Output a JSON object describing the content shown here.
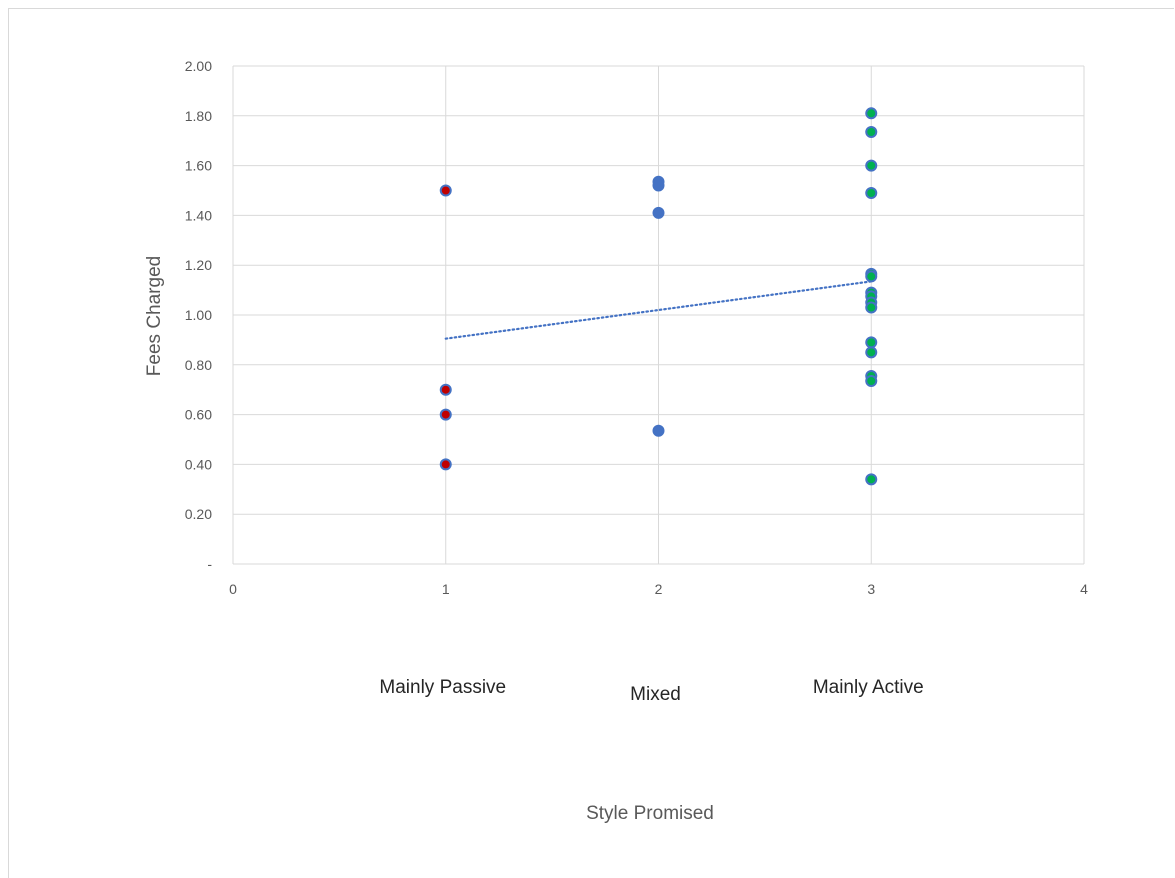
{
  "chart_data": {
    "type": "scatter",
    "title": "",
    "xlabel": "Style Promised",
    "ylabel": "Fees Charged",
    "xlim": [
      0,
      4
    ],
    "ylim": [
      0,
      2
    ],
    "x_ticks": [
      {
        "value": 0,
        "label": "0"
      },
      {
        "value": 1,
        "label": "1"
      },
      {
        "value": 2,
        "label": "2"
      },
      {
        "value": 3,
        "label": "3"
      },
      {
        "value": 4,
        "label": "4"
      }
    ],
    "y_ticks": [
      {
        "value": 0,
        "label": "-"
      },
      {
        "value": 0.2,
        "label": "0.20"
      },
      {
        "value": 0.4,
        "label": "0.40"
      },
      {
        "value": 0.6,
        "label": "0.60"
      },
      {
        "value": 0.8,
        "label": "0.80"
      },
      {
        "value": 1.0,
        "label": "1.00"
      },
      {
        "value": 1.2,
        "label": "1.20"
      },
      {
        "value": 1.4,
        "label": "1.40"
      },
      {
        "value": 1.6,
        "label": "1.60"
      },
      {
        "value": 1.8,
        "label": "1.80"
      },
      {
        "value": 2.0,
        "label": "2.00"
      }
    ],
    "category_labels": [
      {
        "x": 1,
        "label": "Mainly Passive"
      },
      {
        "x": 2,
        "label": "Mixed"
      },
      {
        "x": 3,
        "label": "Mainly Active"
      }
    ],
    "grid": true,
    "series": [
      {
        "color": "#c00000",
        "stroke": "#4472c4",
        "points": [
          {
            "x": 1,
            "y": 1.5
          },
          {
            "x": 1,
            "y": 0.7
          },
          {
            "x": 1,
            "y": 0.6
          },
          {
            "x": 1,
            "y": 0.4
          }
        ]
      },
      {
        "color": "#4472c4",
        "stroke": "#4472c4",
        "points": [
          {
            "x": 2,
            "y": 1.535
          },
          {
            "x": 2,
            "y": 1.52
          },
          {
            "x": 2,
            "y": 1.41
          },
          {
            "x": 2,
            "y": 0.535
          }
        ]
      },
      {
        "color": "#00b050",
        "stroke": "#4472c4",
        "points": [
          {
            "x": 3,
            "y": 1.81
          },
          {
            "x": 3,
            "y": 1.735
          },
          {
            "x": 3,
            "y": 1.6
          },
          {
            "x": 3,
            "y": 1.49
          },
          {
            "x": 3,
            "y": 1.165
          },
          {
            "x": 3,
            "y": 1.155
          },
          {
            "x": 3,
            "y": 1.09
          },
          {
            "x": 3,
            "y": 1.075
          },
          {
            "x": 3,
            "y": 1.05
          },
          {
            "x": 3,
            "y": 1.03
          },
          {
            "x": 3,
            "y": 0.89
          },
          {
            "x": 3,
            "y": 0.85
          },
          {
            "x": 3,
            "y": 0.755
          },
          {
            "x": 3,
            "y": 0.735
          },
          {
            "x": 3,
            "y": 0.34
          }
        ]
      }
    ],
    "trendline": {
      "type": "linear",
      "style": "dotted",
      "color": "#4472c4",
      "points": [
        {
          "x": 1,
          "y": 0.905
        },
        {
          "x": 3,
          "y": 1.135
        }
      ]
    }
  }
}
